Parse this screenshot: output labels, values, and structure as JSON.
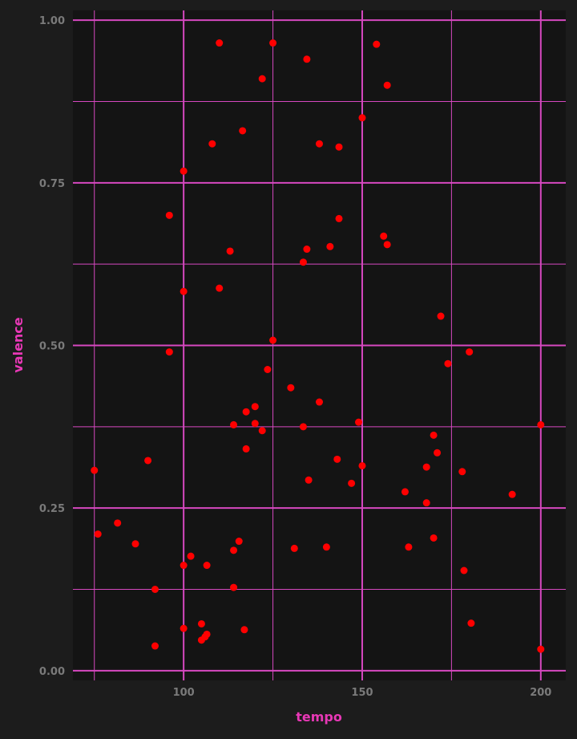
{
  "chart_data": {
    "type": "scatter",
    "title": "",
    "xlabel": "tempo",
    "ylabel": "valence",
    "xlim": [
      69,
      207
    ],
    "ylim": [
      -0.015,
      1.015
    ],
    "x_ticks": [
      100,
      150,
      200
    ],
    "x_tick_labels": [
      "100",
      "150",
      "200"
    ],
    "y_ticks": [
      0,
      0.25,
      0.5,
      0.75,
      1.0
    ],
    "y_tick_labels": [
      "0.00",
      "0.25",
      "0.50",
      "0.75",
      "1.00"
    ],
    "grid": true,
    "colors": {
      "background": "#1c1c1c",
      "panel": "#141414",
      "grid": "#d648c0",
      "points": "#ff0000",
      "tick_text": "#7a7a7a",
      "axis_title": "#e838b6"
    },
    "points": [
      {
        "x": 110,
        "y": 0.965
      },
      {
        "x": 125,
        "y": 0.965
      },
      {
        "x": 154,
        "y": 0.963
      },
      {
        "x": 134.5,
        "y": 0.94
      },
      {
        "x": 122,
        "y": 0.91
      },
      {
        "x": 157,
        "y": 0.9
      },
      {
        "x": 150,
        "y": 0.85
      },
      {
        "x": 116.5,
        "y": 0.83
      },
      {
        "x": 108,
        "y": 0.81
      },
      {
        "x": 138,
        "y": 0.81
      },
      {
        "x": 143.5,
        "y": 0.805
      },
      {
        "x": 100,
        "y": 0.768
      },
      {
        "x": 96,
        "y": 0.7
      },
      {
        "x": 143.5,
        "y": 0.695
      },
      {
        "x": 156,
        "y": 0.668
      },
      {
        "x": 157,
        "y": 0.655
      },
      {
        "x": 141,
        "y": 0.652
      },
      {
        "x": 134.5,
        "y": 0.648
      },
      {
        "x": 113,
        "y": 0.645
      },
      {
        "x": 133.5,
        "y": 0.628
      },
      {
        "x": 110,
        "y": 0.588
      },
      {
        "x": 100,
        "y": 0.583
      },
      {
        "x": 172,
        "y": 0.545
      },
      {
        "x": 125,
        "y": 0.508
      },
      {
        "x": 96,
        "y": 0.49
      },
      {
        "x": 180,
        "y": 0.49
      },
      {
        "x": 174,
        "y": 0.472
      },
      {
        "x": 123.5,
        "y": 0.463
      },
      {
        "x": 130,
        "y": 0.435
      },
      {
        "x": 138,
        "y": 0.413
      },
      {
        "x": 120,
        "y": 0.406
      },
      {
        "x": 117.5,
        "y": 0.398
      },
      {
        "x": 114,
        "y": 0.378
      },
      {
        "x": 120,
        "y": 0.38
      },
      {
        "x": 149,
        "y": 0.382
      },
      {
        "x": 133.5,
        "y": 0.375
      },
      {
        "x": 122,
        "y": 0.369
      },
      {
        "x": 200,
        "y": 0.378
      },
      {
        "x": 170,
        "y": 0.362
      },
      {
        "x": 117.5,
        "y": 0.341
      },
      {
        "x": 171,
        "y": 0.335
      },
      {
        "x": 90,
        "y": 0.323
      },
      {
        "x": 143,
        "y": 0.325
      },
      {
        "x": 150,
        "y": 0.315
      },
      {
        "x": 168,
        "y": 0.313
      },
      {
        "x": 75,
        "y": 0.308
      },
      {
        "x": 178,
        "y": 0.306
      },
      {
        "x": 135,
        "y": 0.293
      },
      {
        "x": 147,
        "y": 0.288
      },
      {
        "x": 162,
        "y": 0.275
      },
      {
        "x": 192,
        "y": 0.271
      },
      {
        "x": 168,
        "y": 0.258
      },
      {
        "x": 81.5,
        "y": 0.227
      },
      {
        "x": 76,
        "y": 0.21
      },
      {
        "x": 170,
        "y": 0.204
      },
      {
        "x": 115.5,
        "y": 0.199
      },
      {
        "x": 86.5,
        "y": 0.195
      },
      {
        "x": 163,
        "y": 0.19
      },
      {
        "x": 140,
        "y": 0.19
      },
      {
        "x": 131,
        "y": 0.188
      },
      {
        "x": 114,
        "y": 0.185
      },
      {
        "x": 102,
        "y": 0.176
      },
      {
        "x": 100,
        "y": 0.162
      },
      {
        "x": 106.5,
        "y": 0.162
      },
      {
        "x": 178.5,
        "y": 0.154
      },
      {
        "x": 114,
        "y": 0.128
      },
      {
        "x": 92,
        "y": 0.125
      },
      {
        "x": 105,
        "y": 0.072
      },
      {
        "x": 180.5,
        "y": 0.073
      },
      {
        "x": 100,
        "y": 0.065
      },
      {
        "x": 117,
        "y": 0.063
      },
      {
        "x": 106.5,
        "y": 0.056
      },
      {
        "x": 106,
        "y": 0.052
      },
      {
        "x": 105,
        "y": 0.047
      },
      {
        "x": 92,
        "y": 0.038
      },
      {
        "x": 200,
        "y": 0.033
      }
    ]
  }
}
